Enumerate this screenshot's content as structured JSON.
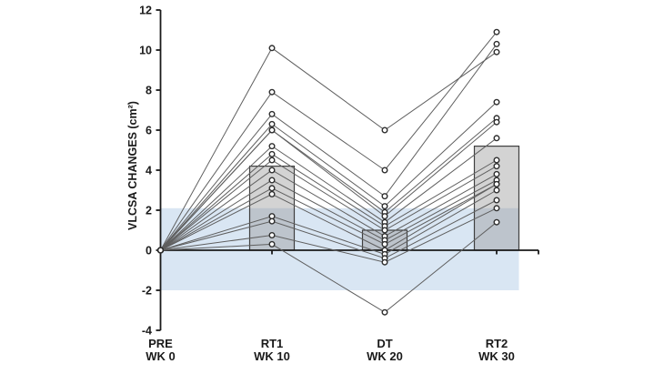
{
  "figure": {
    "background": "#ffffff",
    "description": "Spaghetti plot of individual vastus lateralis cross-sectional area changes with group-mean bars and a shaded typical-error band"
  },
  "chart_data": {
    "type": "line",
    "title": "",
    "xlabel": "",
    "ylabel": "VLCSA CHANGES (cm²)",
    "ylim": [
      -4,
      12
    ],
    "yticks": [
      12,
      10,
      8,
      6,
      4,
      2,
      0,
      -2,
      -4
    ],
    "ytick_labels": [
      "12",
      "10",
      "8",
      "6",
      "4",
      "2",
      "0",
      "-2",
      "-4"
    ],
    "grid": false,
    "legend_position": "none",
    "categories": [
      {
        "label": "PRE",
        "sublabel": "WK 0"
      },
      {
        "label": "RT1",
        "sublabel": "WK 10"
      },
      {
        "label": "DT",
        "sublabel": "WK 20"
      },
      {
        "label": "RT2",
        "sublabel": "WK 30"
      }
    ],
    "band": {
      "name": "typical-error-band",
      "low": -2.0,
      "high": 2.1,
      "color": "#d9e6f3"
    },
    "bars": {
      "name": "group-mean",
      "values": [
        null,
        4.2,
        1.0,
        5.2
      ],
      "fill": "rgba(150,150,150,0.42)",
      "outline": "#3f3f3f"
    },
    "subjects": [
      [
        0,
        10.1,
        6.0,
        9.9
      ],
      [
        0,
        7.9,
        4.0,
        10.9
      ],
      [
        0,
        6.8,
        2.7,
        10.3
      ],
      [
        0,
        6.3,
        2.2,
        7.4
      ],
      [
        0,
        6.0,
        1.9,
        6.6
      ],
      [
        0,
        6.0,
        1.7,
        6.4
      ],
      [
        0,
        5.2,
        1.4,
        5.6
      ],
      [
        0,
        4.8,
        1.2,
        4.5
      ],
      [
        0,
        4.5,
        1.0,
        4.2
      ],
      [
        0,
        4.0,
        0.7,
        3.8
      ],
      [
        0,
        3.5,
        0.5,
        3.5
      ],
      [
        0,
        3.1,
        0.3,
        3.3
      ],
      [
        0,
        2.8,
        0.0,
        3.3
      ],
      [
        0,
        1.7,
        -0.2,
        3.0
      ],
      [
        0,
        1.45,
        -0.4,
        2.5
      ],
      [
        0,
        0.75,
        -0.6,
        2.1
      ],
      [
        0,
        0.3,
        -3.1,
        1.4
      ]
    ],
    "colors": {
      "line": "#5f5f5f",
      "marker_edge": "#2e2e2e",
      "marker_fill": "#ffffff",
      "axis": "#1a1a1a",
      "text": "#1a1a1a"
    }
  }
}
